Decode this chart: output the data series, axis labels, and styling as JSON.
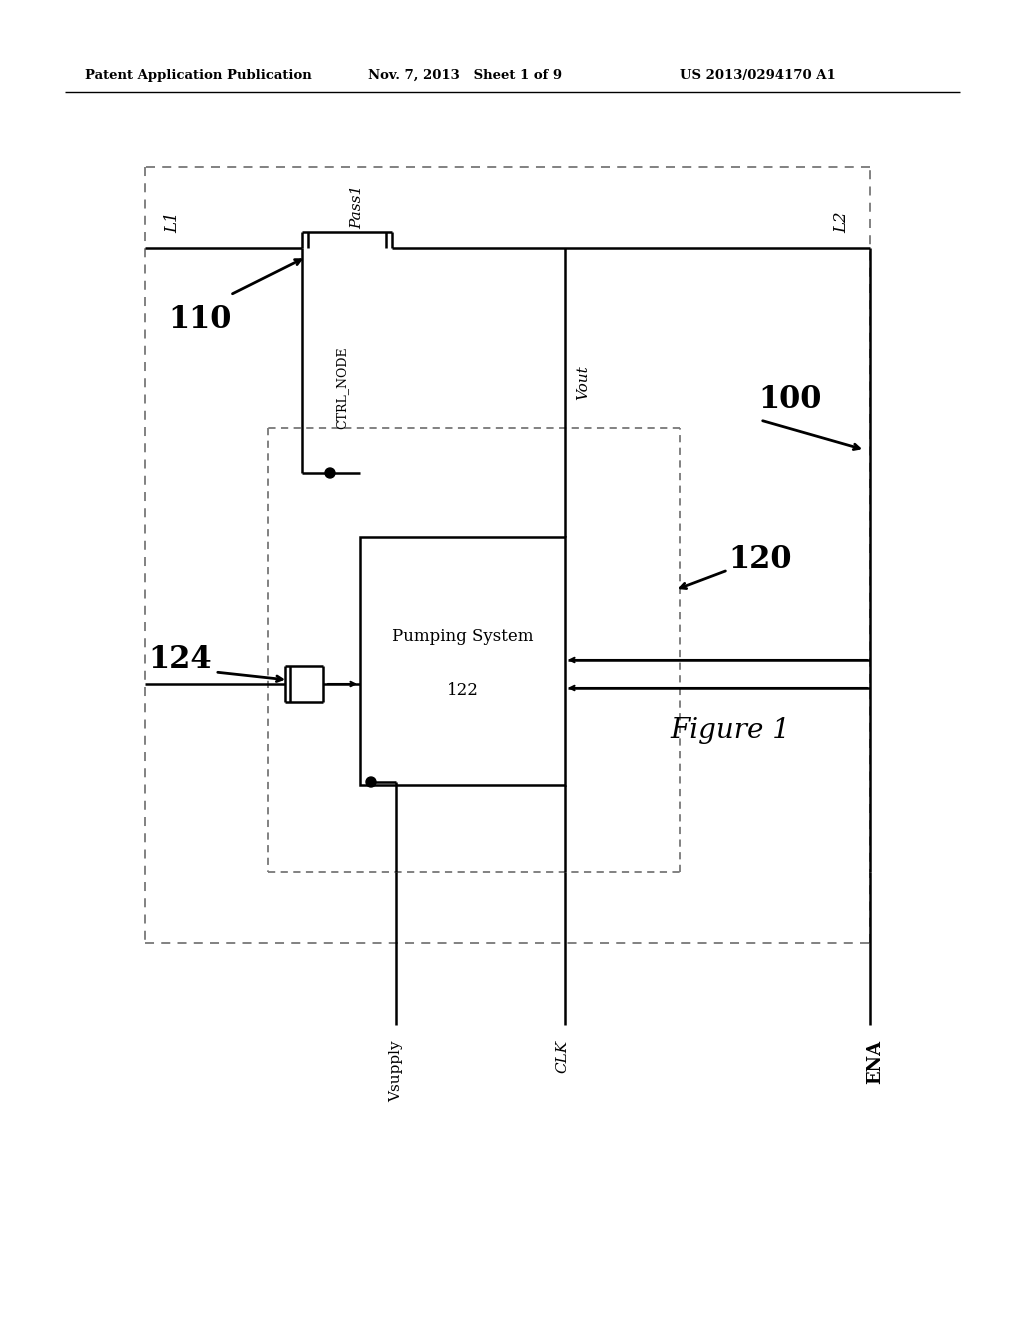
{
  "background_color": "#ffffff",
  "header_left": "Patent Application Publication",
  "header_mid": "Nov. 7, 2013   Sheet 1 of 9",
  "header_right": "US 2013/0294170 A1",
  "figure_label": "Figure 1",
  "labels": {
    "L1": "L1",
    "L2": "L2",
    "Pass1": "Pass1",
    "110": "110",
    "100": "100",
    "120": "120",
    "124": "124",
    "CTRL_NODE": "CTRL_NODE",
    "Vout": "Vout",
    "pumping_system": "Pumping System",
    "122": "122",
    "Vsupply": "Vsupply",
    "CLK": "CLK",
    "ENA": "ENA"
  }
}
